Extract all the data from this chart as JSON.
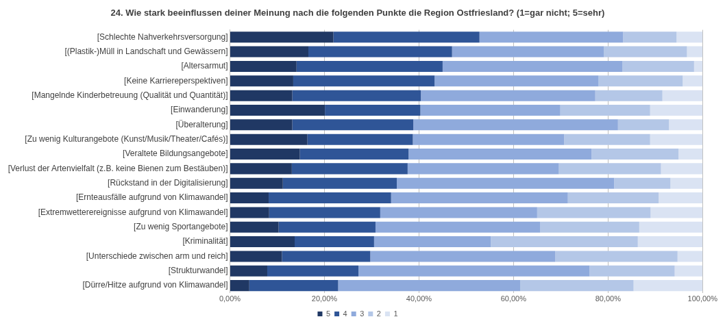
{
  "chart_data": {
    "type": "bar",
    "orientation": "horizontal",
    "stacked": true,
    "title": "24. Wie stark beeinflussen deiner Meinung nach die folgenden Punkte die Region Ostfriesland? (1=gar nicht; 5=sehr)",
    "categories": [
      "[Schlechte Nahverkehrsversorgung]",
      "[(Plastik-)Müll in Landschaft und Gewässern]",
      "[Altersarmut]",
      "[Keine Karriereperspektiven]",
      "[Mangelnde Kinderbetreuung (Qualität und Quantität)]",
      "[Einwanderung]",
      "[Überalterung]",
      "[Zu wenig Kulturangebote (Kunst/Musik/Theater/Cafés)]",
      "[Veraltete Bildungsangebote]",
      "[Verlust der Artenvielfalt (z.B. keine Bienen zum Bestäuben)]",
      "[Rückstand in der Digitalisierung]",
      "[Ernteausfälle aufgrund von Klimawandel]",
      "[Extremwetterereignisse aufgrund von Klimawandel]",
      "[Zu wenig Sportangebote]",
      "[Kriminalität]",
      "[Unterschiede zwischen arm und reich]",
      "[Strukturwandel]",
      "[Dürre/Hitze aufgrund von Klimawandel]"
    ],
    "series": [
      {
        "name": "5",
        "color": "#203864",
        "values": [
          21.9,
          16.6,
          14.1,
          13.4,
          13.2,
          20.1,
          13.2,
          16.4,
          14.8,
          13.1,
          11.2,
          8.2,
          8.3,
          10.3,
          13.7,
          11.0,
          7.9,
          4.1
        ]
      },
      {
        "name": "4",
        "color": "#2f5597",
        "values": [
          30.9,
          30.4,
          30.9,
          29.9,
          27.2,
          20.2,
          25.6,
          22.3,
          23.0,
          24.5,
          24.1,
          25.9,
          23.5,
          20.5,
          16.8,
          18.7,
          19.3,
          18.8
        ]
      },
      {
        "name": "3",
        "color": "#8faadc",
        "values": [
          30.4,
          32.1,
          38.0,
          34.7,
          36.9,
          29.6,
          43.3,
          32.0,
          38.7,
          32.0,
          46.0,
          37.4,
          33.2,
          34.8,
          24.7,
          39.1,
          48.9,
          38.5
        ]
      },
      {
        "name": "2",
        "color": "#b4c7e7",
        "values": [
          11.3,
          17.6,
          15.2,
          17.8,
          14.2,
          19.0,
          10.8,
          18.2,
          18.4,
          21.6,
          11.9,
          19.2,
          24.0,
          21.0,
          31.1,
          25.9,
          18.0,
          24.0
        ]
      },
      {
        "name": "1",
        "color": "#dae3f3",
        "values": [
          5.5,
          3.3,
          1.8,
          4.2,
          8.5,
          11.1,
          7.1,
          11.1,
          5.1,
          8.8,
          6.8,
          9.3,
          11.0,
          13.4,
          13.7,
          5.3,
          5.9,
          14.6
        ]
      }
    ],
    "xlim": [
      0,
      100
    ],
    "xticks": [
      {
        "value": 0,
        "label": "0,00%"
      },
      {
        "value": 20,
        "label": "20,00%"
      },
      {
        "value": 40,
        "label": "40,00%"
      },
      {
        "value": 60,
        "label": "60,00%"
      },
      {
        "value": 80,
        "label": "80,00%"
      },
      {
        "value": 100,
        "label": "100,00%"
      }
    ],
    "grid": "x",
    "legend": "bottom"
  }
}
